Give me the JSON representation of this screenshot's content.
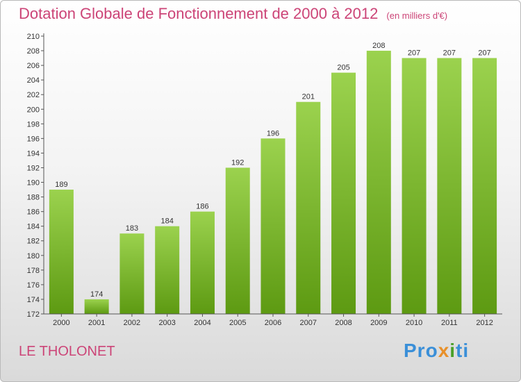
{
  "title": "Dotation Globale de Fonctionnement de 2000 à 2012",
  "subtitle": "(en milliers d'€)",
  "commune": "LE THOLONET",
  "logo": {
    "p1": "Pro",
    "p2": "x",
    "p3": "i",
    "p4": "ti"
  },
  "colors": {
    "title": "#cc4477",
    "bar_light": "#9bd24e",
    "bar_dark": "#5d9a12",
    "logo_blue": "#3a8fd8",
    "logo_orange": "#e8902a",
    "logo_green": "#4aa02a"
  },
  "chart_data": {
    "type": "bar",
    "categories": [
      "2000",
      "2001",
      "2002",
      "2003",
      "2004",
      "2005",
      "2006",
      "2007",
      "2008",
      "2009",
      "2010",
      "2011",
      "2012"
    ],
    "values": [
      189,
      174,
      183,
      184,
      186,
      192,
      196,
      201,
      205,
      208,
      207,
      207,
      207
    ],
    "ylim": [
      172,
      210
    ],
    "yticks": [
      "210",
      "208",
      "206",
      "204",
      "202",
      "200",
      "198",
      "196",
      "194",
      "192",
      "190",
      "188",
      "186",
      "184",
      "182",
      "180",
      "178",
      "176",
      "174",
      "172"
    ],
    "grid": false
  }
}
